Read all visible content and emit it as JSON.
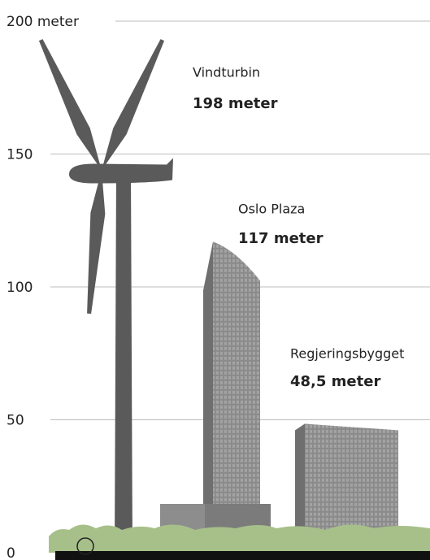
{
  "chart_data": {
    "type": "bar",
    "categories": [
      "Vindturbin",
      "Oslo Plaza",
      "Regjeringsbygget"
    ],
    "values": [
      198,
      117,
      48.5
    ],
    "value_labels": [
      "198 meter",
      "117 meter",
      "48,5 meter"
    ],
    "ylim": [
      0,
      200
    ],
    "yticks": [
      0,
      50,
      100,
      150,
      {
        "value": 200,
        "label": "200 meter"
      }
    ],
    "grid": true,
    "color": "#5a5a5a"
  }
}
